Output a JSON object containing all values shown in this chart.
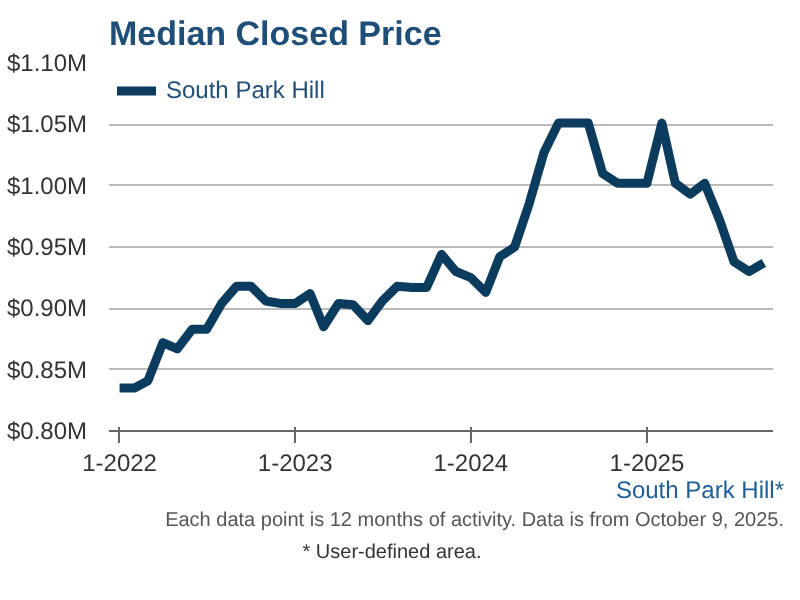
{
  "chart_data": {
    "type": "line",
    "title": "Median Closed Price",
    "x": [
      "2022-01",
      "2022-02",
      "2022-03",
      "2022-04",
      "2022-05",
      "2022-06",
      "2022-07",
      "2022-08",
      "2022-09",
      "2022-10",
      "2022-11",
      "2022-12",
      "2023-01",
      "2023-02",
      "2023-03",
      "2023-04",
      "2023-05",
      "2023-06",
      "2023-07",
      "2023-08",
      "2023-09",
      "2023-10",
      "2023-11",
      "2023-12",
      "2024-01",
      "2024-02",
      "2024-03",
      "2024-04",
      "2024-05",
      "2024-06",
      "2024-07",
      "2024-08",
      "2024-09",
      "2024-10",
      "2024-11",
      "2024-12",
      "2025-01",
      "2025-02",
      "2025-03",
      "2025-04",
      "2025-05",
      "2025-06",
      "2025-07",
      "2025-08",
      "2025-09"
    ],
    "series": [
      {
        "name": "South Park Hill",
        "color": "#0b3c5d",
        "values": [
          0.835,
          0.835,
          0.841,
          0.872,
          0.867,
          0.883,
          0.883,
          0.904,
          0.918,
          0.918,
          0.906,
          0.904,
          0.904,
          0.912,
          0.885,
          0.904,
          0.903,
          0.89,
          0.906,
          0.918,
          0.917,
          0.917,
          0.944,
          0.93,
          0.925,
          0.913,
          0.942,
          0.95,
          0.985,
          1.027,
          1.051,
          1.051,
          1.051,
          1.01,
          1.002,
          1.002,
          1.002,
          1.051,
          1.002,
          0.993,
          1.002,
          0.972,
          0.938,
          0.93,
          0.937
        ]
      }
    ],
    "xlim": [
      "2021-12-10",
      "2025-09-20"
    ],
    "xticks": [
      {
        "value": "2022-01",
        "label": "1-2022"
      },
      {
        "value": "2023-01",
        "label": "1-2023"
      },
      {
        "value": "2024-01",
        "label": "1-2024"
      },
      {
        "value": "2025-01",
        "label": "1-2025"
      }
    ],
    "ylim": [
      0.8,
      1.1
    ],
    "yticks": [
      {
        "value": 0.8,
        "label": "$0.80M"
      },
      {
        "value": 0.85,
        "label": "$0.85M"
      },
      {
        "value": 0.9,
        "label": "$0.90M"
      },
      {
        "value": 0.95,
        "label": "$0.95M"
      },
      {
        "value": 1.0,
        "label": "$1.00M"
      },
      {
        "value": 1.05,
        "label": "$1.05M"
      },
      {
        "value": 1.1,
        "label": "$1.10M"
      }
    ],
    "grid": "y",
    "legend": "top left",
    "marker": "none",
    "line_style": "solid",
    "annotations": [
      "South Park Hill*",
      "Each data point is 12 months of activity. Data is from October 9, 2025.",
      "* User-defined area."
    ]
  }
}
